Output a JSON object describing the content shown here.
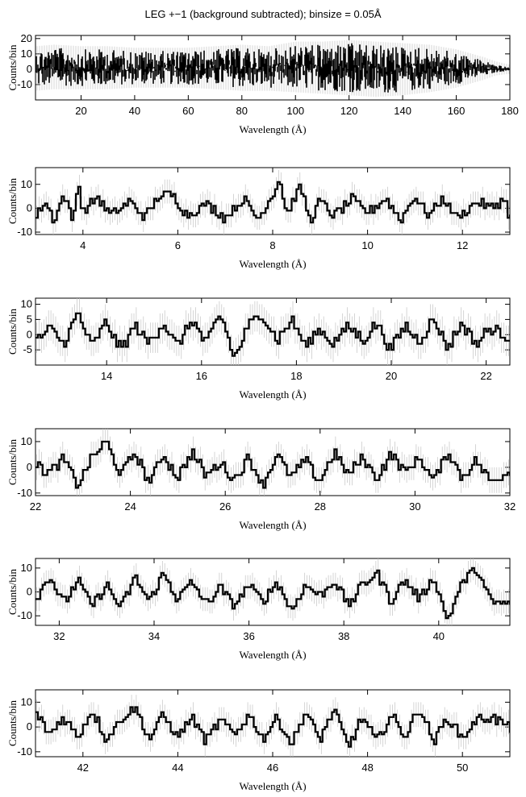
{
  "title": "LEG +−1 (background subtracted); binsize = 0.05Å",
  "chart_data": [
    {
      "type": "line",
      "xlabel": "Wavelength (Å)",
      "ylabel": "Counts/bin",
      "xlim": [
        3,
        180
      ],
      "ylim": [
        -20,
        22
      ],
      "xticks": [
        20,
        40,
        60,
        80,
        100,
        120,
        140,
        160,
        180
      ],
      "yticks": [
        -10,
        0,
        10,
        20
      ],
      "series": [
        {
          "x": [
            3,
            10,
            20,
            30,
            40,
            50,
            60,
            70,
            80,
            90,
            100,
            110,
            120,
            130,
            140,
            150,
            160,
            170,
            175,
            180
          ],
          "ymax": [
            13,
            14,
            13,
            13,
            12,
            12,
            12,
            13,
            14,
            13,
            16,
            16,
            17,
            16,
            15,
            14,
            11,
            6,
            3,
            1
          ],
          "ymin": [
            -12,
            -11,
            -11,
            -11,
            -10,
            -10,
            -10,
            -11,
            -12,
            -12,
            -13,
            -14,
            -15,
            -16,
            -15,
            -13,
            -10,
            -5,
            -2,
            -1
          ]
        }
      ]
    },
    {
      "type": "line",
      "xlabel": "Wavelength (Å)",
      "ylabel": "Counts/bin",
      "xlim": [
        3,
        13
      ],
      "ylim": [
        -11,
        17
      ],
      "xticks": [
        4,
        6,
        8,
        10,
        12
      ],
      "yticks": [
        -10,
        0,
        10
      ],
      "series": [
        {
          "x": [
            3.0,
            3.2,
            3.4,
            3.6,
            3.8,
            3.9,
            4.0,
            4.3,
            4.6,
            5.0,
            5.3,
            5.6,
            5.9,
            6.2,
            6.6,
            7.0,
            7.4,
            7.7,
            8.0,
            8.15,
            8.3,
            8.6,
            8.8,
            9.0,
            9.3,
            9.7,
            10.0,
            10.4,
            10.7,
            11.0,
            11.3,
            11.6,
            11.9,
            12.3,
            12.6,
            12.9,
            13.0
          ],
          "y": [
            -4,
            3,
            -5,
            6,
            -6,
            12,
            -2,
            5,
            -3,
            3,
            -4,
            5,
            6,
            -3,
            2,
            -4,
            4,
            -5,
            6,
            12,
            -2,
            9,
            -6,
            3,
            -3,
            4,
            -2,
            4,
            -5,
            5,
            -3,
            4,
            -4,
            3,
            0,
            4,
            -4
          ]
        }
      ]
    },
    {
      "type": "line",
      "xlabel": "Wavelength (Å)",
      "ylabel": "Counts/bin",
      "xlim": [
        12.5,
        22.5
      ],
      "ylim": [
        -10,
        12
      ],
      "xticks": [
        14,
        16,
        18,
        20,
        22
      ],
      "yticks": [
        -5,
        0,
        5,
        10
      ],
      "series": [
        {
          "x": [
            12.5,
            12.8,
            13.1,
            13.4,
            13.7,
            14.0,
            14.3,
            14.6,
            14.9,
            15.2,
            15.5,
            15.8,
            16.1,
            16.4,
            16.7,
            17.0,
            17.3,
            17.6,
            17.9,
            18.2,
            18.5,
            18.8,
            19.1,
            19.4,
            19.7,
            20.0,
            20.3,
            20.6,
            20.9,
            21.2,
            21.5,
            21.8,
            22.1,
            22.5
          ],
          "y": [
            -2,
            2,
            -3,
            7,
            -4,
            4,
            -5,
            3,
            -3,
            4,
            -4,
            5,
            -3,
            7,
            -8,
            3,
            7,
            -2,
            5,
            -4,
            2,
            -3,
            3,
            -2,
            4,
            -5,
            3,
            -2,
            5,
            -4,
            4,
            -3,
            2,
            -1
          ]
        }
      ]
    },
    {
      "type": "line",
      "xlabel": "Wavelength (Å)",
      "ylabel": "Counts/bin",
      "xlim": [
        22,
        32
      ],
      "ylim": [
        -11,
        15
      ],
      "xticks": [
        22,
        24,
        26,
        28,
        30,
        32
      ],
      "yticks": [
        -10,
        0,
        10
      ],
      "series": [
        {
          "x": [
            22.0,
            22.3,
            22.6,
            22.9,
            23.2,
            23.5,
            23.8,
            24.1,
            24.4,
            24.7,
            25.0,
            25.3,
            25.6,
            25.9,
            26.2,
            26.5,
            26.8,
            27.1,
            27.4,
            27.7,
            28.0,
            28.3,
            28.6,
            28.9,
            29.2,
            29.5,
            29.8,
            30.1,
            30.4,
            30.7,
            31.0,
            31.3,
            31.6,
            32.0
          ],
          "y": [
            1,
            -2,
            3,
            -7,
            4,
            10,
            -3,
            6,
            -6,
            5,
            -4,
            6,
            -3,
            2,
            -5,
            4,
            -7,
            5,
            -4,
            3,
            -6,
            6,
            -3,
            4,
            -4,
            5,
            -2,
            4,
            -5,
            6,
            -4,
            3,
            -6,
            -1
          ]
        }
      ]
    },
    {
      "type": "line",
      "xlabel": "Wavelength (Å)",
      "ylabel": "Counts/bin",
      "xlim": [
        31.5,
        41.5
      ],
      "ylim": [
        -14,
        14
      ],
      "xticks": [
        32,
        34,
        36,
        38,
        40
      ],
      "yticks": [
        -10,
        0,
        10
      ],
      "series": [
        {
          "x": [
            31.5,
            31.8,
            32.1,
            32.4,
            32.7,
            33.0,
            33.3,
            33.6,
            33.9,
            34.2,
            34.5,
            34.8,
            35.1,
            35.4,
            35.7,
            36.0,
            36.3,
            36.6,
            36.9,
            37.2,
            37.5,
            37.8,
            38.1,
            38.4,
            38.7,
            39.0,
            39.3,
            39.6,
            39.9,
            40.2,
            40.5,
            40.8,
            41.1,
            41.5
          ],
          "y": [
            -4,
            7,
            -5,
            5,
            -6,
            3,
            -7,
            6,
            -4,
            8,
            -3,
            4,
            -5,
            2,
            -6,
            3,
            -4,
            4,
            -8,
            3,
            -2,
            5,
            -6,
            3,
            8,
            -4,
            5,
            -3,
            6,
            -12,
            4,
            10,
            -4,
            -5
          ]
        }
      ]
    },
    {
      "type": "line",
      "xlabel": "Wavelength (Å)",
      "ylabel": "Counts/bin",
      "xlim": [
        41,
        51
      ],
      "ylim": [
        -12,
        15
      ],
      "xticks": [
        42,
        44,
        46,
        48,
        50
      ],
      "yticks": [
        -10,
        0,
        10
      ],
      "series": [
        {
          "x": [
            41.0,
            41.3,
            41.6,
            41.9,
            42.2,
            42.5,
            42.8,
            43.1,
            43.4,
            43.7,
            44.0,
            44.3,
            44.6,
            44.9,
            45.2,
            45.5,
            45.8,
            46.1,
            46.4,
            46.7,
            47.0,
            47.3,
            47.6,
            47.9,
            48.2,
            48.5,
            48.8,
            49.1,
            49.4,
            49.7,
            50.0,
            50.3,
            50.6,
            51.0
          ],
          "y": [
            6,
            -3,
            4,
            -4,
            7,
            -5,
            3,
            8,
            -5,
            5,
            -4,
            4,
            -6,
            3,
            -3,
            5,
            -5,
            4,
            -7,
            6,
            -5,
            7,
            -8,
            4,
            -6,
            5,
            -4,
            8,
            -6,
            4,
            -5,
            3,
            4,
            0
          ]
        }
      ]
    }
  ]
}
